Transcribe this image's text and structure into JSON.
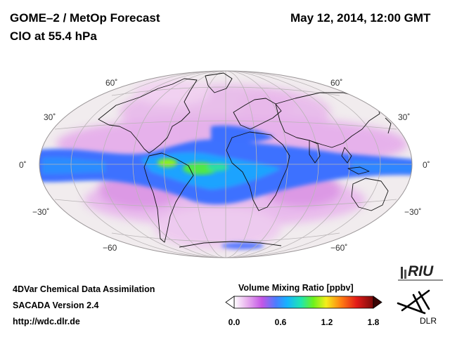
{
  "header": {
    "title_left": "GOME–2 / MetOp Forecast",
    "subtitle_left": "ClO at 55.4 hPa",
    "date_right": "May 12, 2014, 12:00 GMT"
  },
  "map": {
    "projection": "Hammer-Aitoff (world)",
    "lat_labels_left": [
      "60˚",
      "30˚",
      "0˚",
      "−30˚",
      "−60"
    ],
    "lat_labels_right": [
      "60˚",
      "30˚",
      "0˚",
      "−30˚",
      "−60˚"
    ]
  },
  "colorbar": {
    "title": "Volume Mixing Ratio [ppbv]",
    "ticks": [
      "0.0",
      "0.6",
      "1.2",
      "1.8"
    ],
    "min": 0.0,
    "max": 1.8,
    "colors": [
      "#ffffff",
      "#e9b3ef",
      "#c455e6",
      "#4b7dff",
      "#16b3ff",
      "#1fe6b0",
      "#6df21b",
      "#f4ee1a",
      "#ff7d12",
      "#e31b18",
      "#7a0a0a"
    ]
  },
  "footer": {
    "line1": "4DVar Chemical Data Assimilation",
    "line2": "SACADA Version 2.4",
    "line3": "http://wdc.dlr.de"
  },
  "logos": {
    "riu": "RIU",
    "dlr": "DLR"
  }
}
